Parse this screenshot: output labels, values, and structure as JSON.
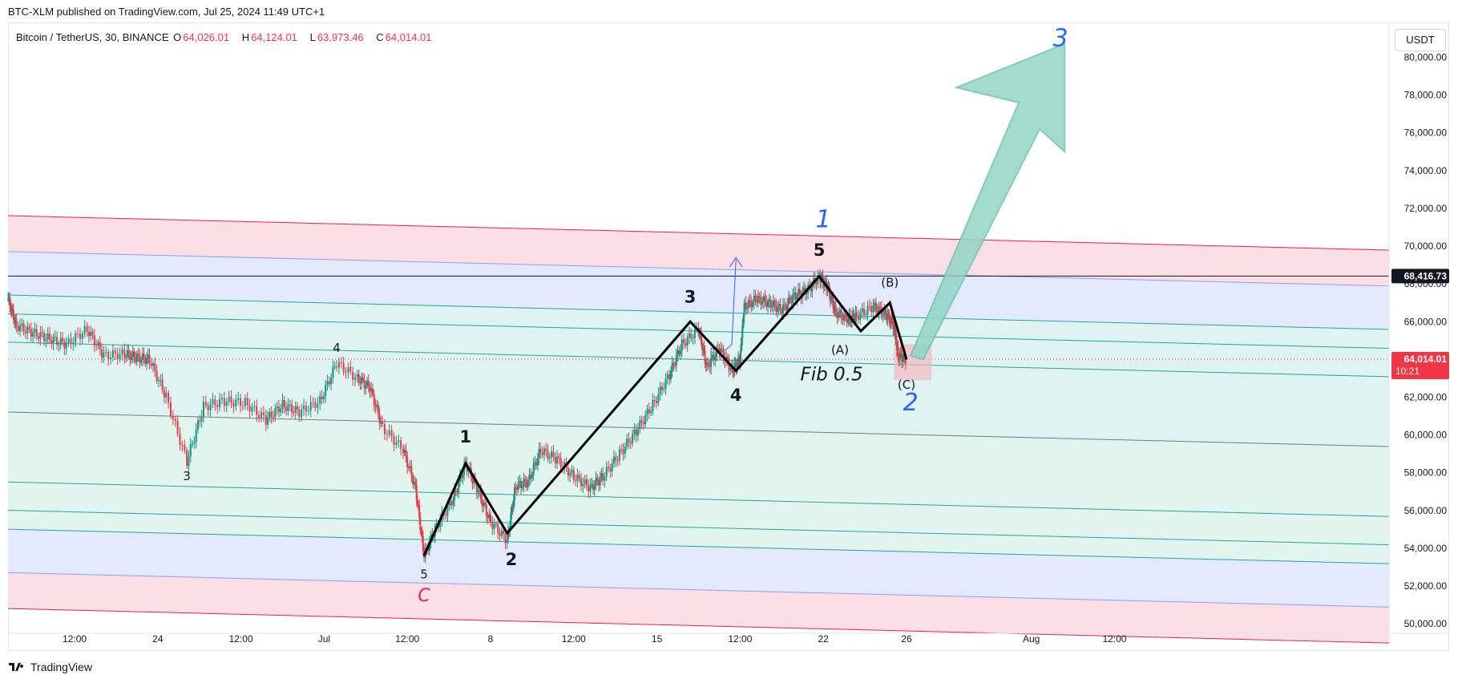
{
  "publisher_line": "BTC-XLM published on TradingView.com, Jul 25, 2024 11:49 UTC+1",
  "symbol": {
    "name": "Bitcoin / TetherUS, 30, BINANCE",
    "open_key": "O",
    "open": "64,026.01",
    "high_key": "H",
    "high": "64,124.01",
    "low_key": "L",
    "low": "63,973.46",
    "close_key": "C",
    "close": "64,014.01"
  },
  "currency_button": "USDT",
  "footer_brand": "TradingView",
  "chart_data": {
    "type": "line",
    "price_scale": {
      "ticks": [
        "50,000.00",
        "52,000.00",
        "54,000.00",
        "56,000.00",
        "58,000.00",
        "60,000.00",
        "62,000.00",
        "64,000.00",
        "66,000.00",
        "68,000.00",
        "70,000.00",
        "72,000.00",
        "74,000.00",
        "76,000.00",
        "78,000.00",
        "80,000.00"
      ],
      "tick_values": [
        50000,
        52000,
        54000,
        56000,
        58000,
        60000,
        62000,
        64000,
        66000,
        68000,
        70000,
        72000,
        74000,
        76000,
        78000,
        80000
      ],
      "ylim": [
        49500,
        81800
      ]
    },
    "time_scale": {
      "ticks": [
        "12:00",
        "24",
        "12:00",
        "Jul",
        "12:00",
        "8",
        "12:00",
        "15",
        "12:00",
        "22",
        "26",
        "Aug",
        "12:00"
      ],
      "tick_positions_days": [
        -15,
        -13,
        -11,
        -9,
        -7,
        -5,
        -3,
        -1,
        1,
        3,
        5,
        8,
        10
      ]
    },
    "xlim_days": [
      -16.6,
      16.6
    ],
    "last_price_label": "64,014.01",
    "countdown_label": "10:21",
    "level_label": "68,416.73",
    "level_value": 68416.73,
    "last_price_value": 64014.01,
    "price_path": [
      [
        -16.6,
        67200
      ],
      [
        -16.4,
        65800
      ],
      [
        -16.0,
        65400
      ],
      [
        -15.6,
        65100
      ],
      [
        -15.2,
        64800
      ],
      [
        -14.7,
        65600
      ],
      [
        -14.3,
        64200
      ],
      [
        -13.8,
        64300
      ],
      [
        -13.5,
        64100
      ],
      [
        -13.2,
        64000
      ],
      [
        -12.8,
        62000
      ],
      [
        -12.3,
        58600
      ],
      [
        -11.9,
        61500
      ],
      [
        -11.4,
        61800
      ],
      [
        -10.9,
        61700
      ],
      [
        -10.4,
        60800
      ],
      [
        -10.0,
        61600
      ],
      [
        -9.6,
        61200
      ],
      [
        -9.1,
        61800
      ],
      [
        -8.7,
        63800
      ],
      [
        -8.2,
        63000
      ],
      [
        -7.9,
        62500
      ],
      [
        -7.6,
        60400
      ],
      [
        -7.1,
        59200
      ],
      [
        -6.8,
        57200
      ],
      [
        -6.6,
        53600
      ],
      [
        -6.3,
        55200
      ],
      [
        -5.9,
        56600
      ],
      [
        -5.6,
        58500
      ],
      [
        -5.3,
        57000
      ],
      [
        -5.0,
        55400
      ],
      [
        -4.6,
        54400
      ],
      [
        -4.4,
        57300
      ],
      [
        -4.1,
        57500
      ],
      [
        -3.8,
        59200
      ],
      [
        -3.4,
        58700
      ],
      [
        -3.0,
        57800
      ],
      [
        -2.6,
        57200
      ],
      [
        -2.3,
        57800
      ],
      [
        -1.9,
        59000
      ],
      [
        -1.5,
        60200
      ],
      [
        -1.1,
        61600
      ],
      [
        -0.7,
        63200
      ],
      [
        -0.4,
        64800
      ],
      [
        0.0,
        65600
      ],
      [
        0.2,
        63600
      ],
      [
        0.5,
        64600
      ],
      [
        0.8,
        63400
      ],
      [
        1.0,
        64000
      ],
      [
        1.1,
        66800
      ],
      [
        1.4,
        67200
      ],
      [
        1.7,
        67000
      ],
      [
        2.0,
        66600
      ],
      [
        2.3,
        67400
      ],
      [
        2.6,
        67600
      ],
      [
        2.9,
        68400
      ],
      [
        3.1,
        67800
      ],
      [
        3.3,
        66500
      ],
      [
        3.6,
        66100
      ],
      [
        3.8,
        66300
      ],
      [
        4.2,
        66800
      ],
      [
        4.5,
        66400
      ],
      [
        4.7,
        65800
      ],
      [
        4.8,
        64200
      ],
      [
        5.0,
        64014
      ]
    ],
    "wave_path": [
      [
        -6.6,
        53600
      ],
      [
        -5.6,
        58500
      ],
      [
        -4.6,
        54800
      ],
      [
        -0.2,
        66000
      ],
      [
        0.9,
        63400
      ],
      [
        2.9,
        68400
      ],
      [
        3.9,
        65500
      ],
      [
        4.6,
        67000
      ],
      [
        5.0,
        64000
      ]
    ],
    "labels": [
      {
        "text": "4",
        "t": -8.7,
        "p": 64400,
        "size": 15,
        "color": "#131722",
        "weight": "normal",
        "italic": false
      },
      {
        "text": "3",
        "t": -12.3,
        "p": 57600,
        "size": 15,
        "color": "#131722",
        "weight": "normal",
        "italic": false
      },
      {
        "text": "5",
        "t": -6.6,
        "p": 52400,
        "size": 15,
        "color": "#131722",
        "weight": "normal",
        "italic": false
      },
      {
        "text": "C",
        "t": -6.6,
        "p": 51200,
        "size": 22,
        "color": "#e91e63",
        "weight": "normal",
        "italic": true
      },
      {
        "text": "1",
        "t": -5.6,
        "p": 59600,
        "size": 21,
        "color": "#131722",
        "weight": "bold",
        "italic": false
      },
      {
        "text": "2",
        "t": -4.5,
        "p": 53100,
        "size": 21,
        "color": "#131722",
        "weight": "bold",
        "italic": false
      },
      {
        "text": "3",
        "t": -0.2,
        "p": 67000,
        "size": 21,
        "color": "#131722",
        "weight": "bold",
        "italic": false
      },
      {
        "text": "4",
        "t": 0.9,
        "p": 61800,
        "size": 21,
        "color": "#131722",
        "weight": "bold",
        "italic": false
      },
      {
        "text": "5",
        "t": 2.9,
        "p": 69500,
        "size": 21,
        "color": "#131722",
        "weight": "bold",
        "italic": false
      },
      {
        "text": "1",
        "t": 3.0,
        "p": 71000,
        "size": 30,
        "color": "#2962ff",
        "weight": "normal",
        "italic": true
      },
      {
        "text": "(B)",
        "t": 4.6,
        "p": 67850,
        "size": 15,
        "color": "#131722",
        "weight": "normal",
        "italic": false
      },
      {
        "text": "(A)",
        "t": 3.4,
        "p": 64300,
        "size": 15,
        "color": "#131722",
        "weight": "normal",
        "italic": false
      },
      {
        "text": "(C)",
        "t": 5.0,
        "p": 62450,
        "size": 15,
        "color": "#131722",
        "weight": "normal",
        "italic": false
      },
      {
        "text": "2",
        "t": 5.1,
        "p": 61300,
        "size": 30,
        "color": "#2962ff",
        "weight": "normal",
        "italic": true
      },
      {
        "text": "Fib 0.5",
        "t": 3.2,
        "p": 62900,
        "size": 23,
        "color": "#131722",
        "weight": "normal",
        "italic": true
      },
      {
        "text": "3",
        "t": 8.7,
        "p": 80600,
        "size": 30,
        "color": "#2962ff",
        "weight": "normal",
        "italic": true
      }
    ],
    "colors": {
      "zone_outer": "#fbdfe5",
      "zone_mid": "#e3eafd",
      "zone_inner": "#e0f3f3",
      "zone_core": "#e1f4ee",
      "line_red": "#e91e63",
      "line_blue": "#8e9ef3",
      "line_teal": "#26a69a",
      "line_gray": "#787b86",
      "arrow_fill": "#93d5c5",
      "arrow_stroke": "#6ec4af",
      "price_tag": "#f23645",
      "wave": "#000000",
      "candle_up": "#089981",
      "candle_down": "#f23645"
    }
  }
}
